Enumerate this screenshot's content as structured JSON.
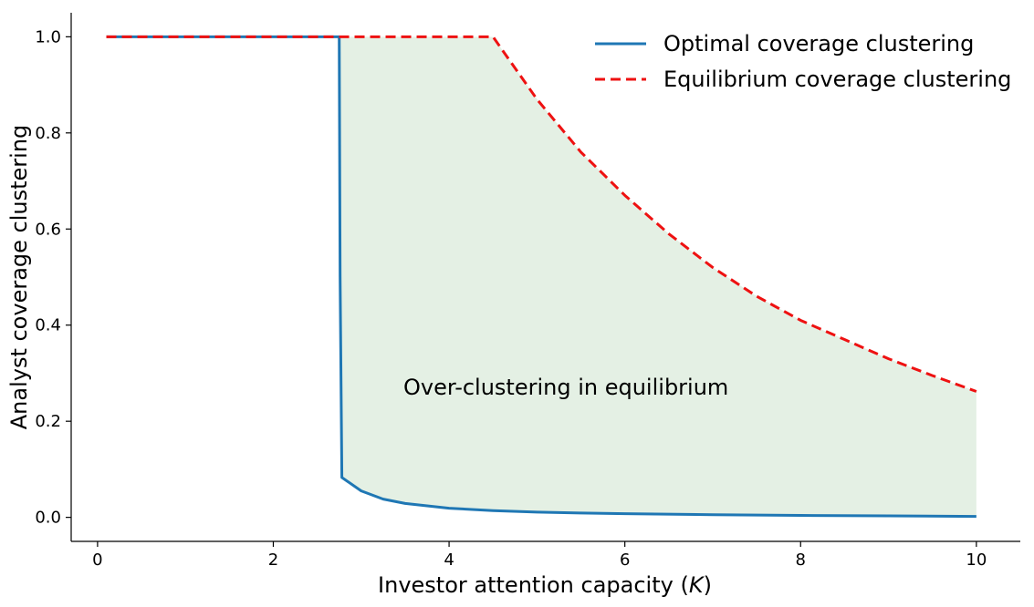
{
  "chart_data": {
    "type": "line",
    "xlabel": "Investor attention capacity (K)",
    "ylabel": "Analyst coverage clustering",
    "xlim": [
      -0.3,
      10.5
    ],
    "ylim": [
      -0.05,
      1.05
    ],
    "x_ticks": [
      0,
      2,
      4,
      6,
      8,
      10
    ],
    "y_ticks": [
      0.0,
      0.2,
      0.4,
      0.6,
      0.8,
      1.0
    ],
    "x_tick_labels": [
      "0",
      "2",
      "4",
      "6",
      "8",
      "10"
    ],
    "y_tick_labels": [
      "0.0",
      "0.2",
      "0.4",
      "0.6",
      "0.8",
      "1.0"
    ],
    "legend_position": "top-right",
    "annotation": "Over-clustering in equilibrium",
    "fill_color": "#e4f0e4",
    "series": [
      {
        "name": "Optimal coverage clustering",
        "style": "solid",
        "color": "#1f77b4",
        "x": [
          0.1,
          2.74,
          2.75,
          2.76,
          2.78,
          3.0,
          3.25,
          3.5,
          4.0,
          4.5,
          5.0,
          5.5,
          6.0,
          7.0,
          8.0,
          9.0,
          10.0
        ],
        "y": [
          1.0,
          1.0,
          1.0,
          0.5,
          0.083,
          0.055,
          0.038,
          0.029,
          0.019,
          0.014,
          0.011,
          0.009,
          0.0075,
          0.0055,
          0.004,
          0.003,
          0.002
        ]
      },
      {
        "name": "Equilibrium coverage clustering",
        "style": "dashed",
        "color": "#ee1111",
        "x": [
          0.1,
          4.5,
          5.0,
          5.5,
          6.0,
          6.5,
          7.0,
          7.5,
          8.0,
          8.5,
          9.0,
          9.5,
          10.0
        ],
        "y": [
          1.0,
          1.0,
          0.87,
          0.76,
          0.67,
          0.59,
          0.52,
          0.46,
          0.41,
          0.37,
          0.33,
          0.295,
          0.262
        ]
      }
    ]
  }
}
